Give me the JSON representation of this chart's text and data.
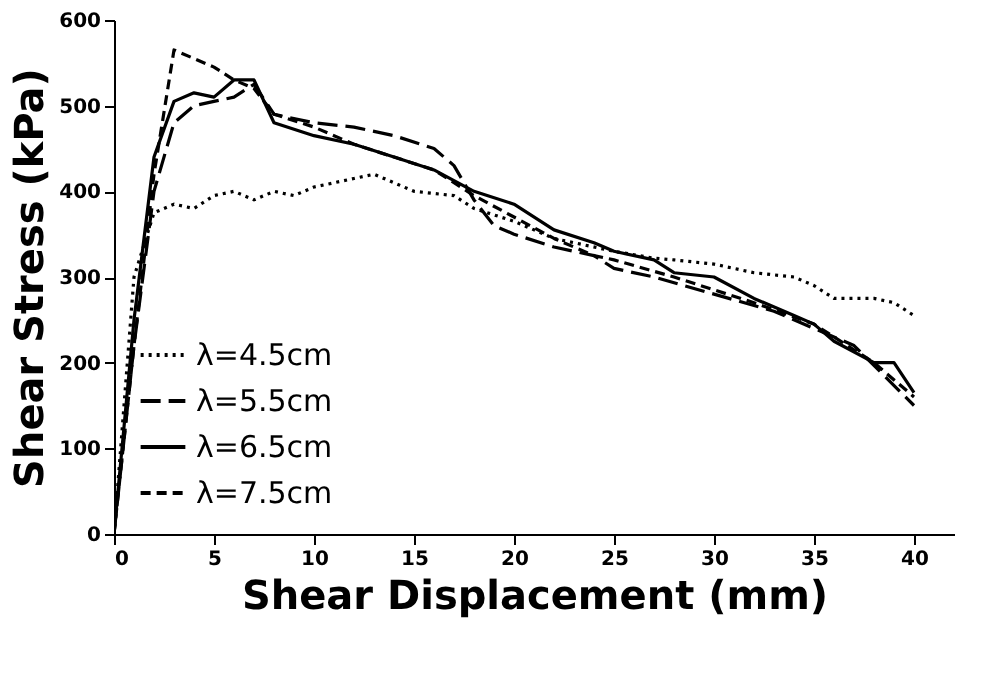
{
  "chart_data": {
    "type": "line",
    "xlabel": "Shear Displacement  (mm)",
    "ylabel": "Shear Stress  (kPa)",
    "xlim": [
      0,
      42
    ],
    "xticks": [
      0,
      5,
      10,
      15,
      20,
      25,
      30,
      35,
      40
    ],
    "ylim": [
      0,
      600
    ],
    "yticks": [
      0,
      100,
      200,
      300,
      400,
      500,
      600
    ],
    "grid": false,
    "legend": "bottom left",
    "series": [
      {
        "name": "λ=4.5cm",
        "color": "#000000",
        "line_style": "dotted",
        "x": [
          0,
          1,
          2,
          3,
          4,
          5,
          6,
          7,
          8,
          9,
          10,
          11,
          12,
          13,
          15,
          17,
          18,
          20,
          22,
          25,
          27,
          28,
          30,
          32,
          34,
          35,
          36,
          38,
          39,
          40
        ],
        "values": [
          0,
          300,
          375,
          385,
          380,
          395,
          400,
          390,
          400,
          395,
          405,
          410,
          415,
          420,
          400,
          395,
          380,
          365,
          345,
          330,
          322,
          320,
          315,
          305,
          300,
          290,
          275,
          275,
          270,
          255
        ]
      },
      {
        "name": "λ=5.5cm",
        "color": "#000000",
        "line_style": "dashed",
        "x": [
          0,
          1,
          2,
          3,
          4,
          5,
          6,
          7,
          8,
          10,
          12,
          14,
          16,
          17,
          18,
          19,
          20,
          22,
          24,
          25,
          27,
          30,
          33,
          35,
          37,
          40
        ],
        "values": [
          0,
          220,
          400,
          480,
          500,
          505,
          510,
          525,
          490,
          480,
          475,
          465,
          450,
          430,
          390,
          360,
          350,
          335,
          325,
          310,
          300,
          280,
          260,
          240,
          220,
          150
        ]
      },
      {
        "name": "λ=6.5cm",
        "color": "#000000",
        "line_style": "solid",
        "x": [
          0,
          1,
          2,
          3,
          4,
          5,
          6,
          7,
          8,
          10,
          12,
          14,
          16,
          18,
          20,
          22,
          24,
          25,
          27,
          28,
          30,
          32,
          34,
          35,
          36,
          38,
          39,
          40
        ],
        "values": [
          0,
          250,
          440,
          505,
          515,
          510,
          530,
          530,
          480,
          465,
          455,
          440,
          425,
          400,
          385,
          355,
          340,
          330,
          320,
          305,
          300,
          275,
          255,
          245,
          225,
          200,
          200,
          165
        ]
      },
      {
        "name": "λ=7.5cm",
        "color": "#000000",
        "line_style": "dashed",
        "x": [
          0,
          1,
          2,
          3,
          4,
          5,
          6,
          7,
          8,
          10,
          12,
          14,
          16,
          18,
          20,
          22,
          24,
          25,
          28,
          30,
          32,
          35,
          38,
          40
        ],
        "values": [
          0,
          220,
          420,
          565,
          555,
          545,
          530,
          520,
          490,
          475,
          455,
          440,
          425,
          395,
          370,
          345,
          325,
          320,
          300,
          285,
          270,
          245,
          200,
          160
        ]
      }
    ]
  }
}
